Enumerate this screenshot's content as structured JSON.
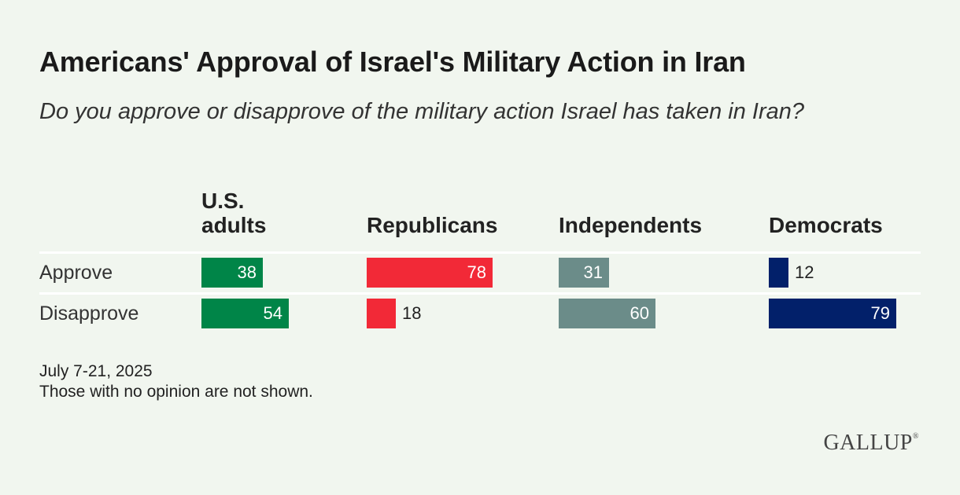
{
  "title": "Americans' Approval of Israel's Military Action in Iran",
  "subtitle": "Do you approve or disapprove of the military action Israel has taken in Iran?",
  "footnote_date": "July 7-21, 2025",
  "footnote_note": "Those with no opinion are not shown.",
  "logo": "GALLUP",
  "logo_mark": "®",
  "chart_data": {
    "type": "bar",
    "orientation": "horizontal",
    "title": "Americans' Approval of Israel's Military Action in Iran",
    "subtitle": "Do you approve or disapprove of the military action Israel has taken in Iran?",
    "categories": [
      "Approve",
      "Disapprove"
    ],
    "unit": "%",
    "xlim": [
      0,
      100
    ],
    "series": [
      {
        "name": "U.S. adults",
        "header_lines": [
          "U.S.",
          "adults"
        ],
        "color": "#008548",
        "values": [
          38,
          54
        ]
      },
      {
        "name": "Republicans",
        "header_lines": [
          "Republicans"
        ],
        "color": "#f22937",
        "values": [
          78,
          18
        ]
      },
      {
        "name": "Independents",
        "header_lines": [
          "Independents"
        ],
        "color": "#6b8c89",
        "values": [
          31,
          60
        ]
      },
      {
        "name": "Democrats",
        "header_lines": [
          "Democrats"
        ],
        "color": "#02206a",
        "values": [
          12,
          79
        ]
      }
    ]
  }
}
